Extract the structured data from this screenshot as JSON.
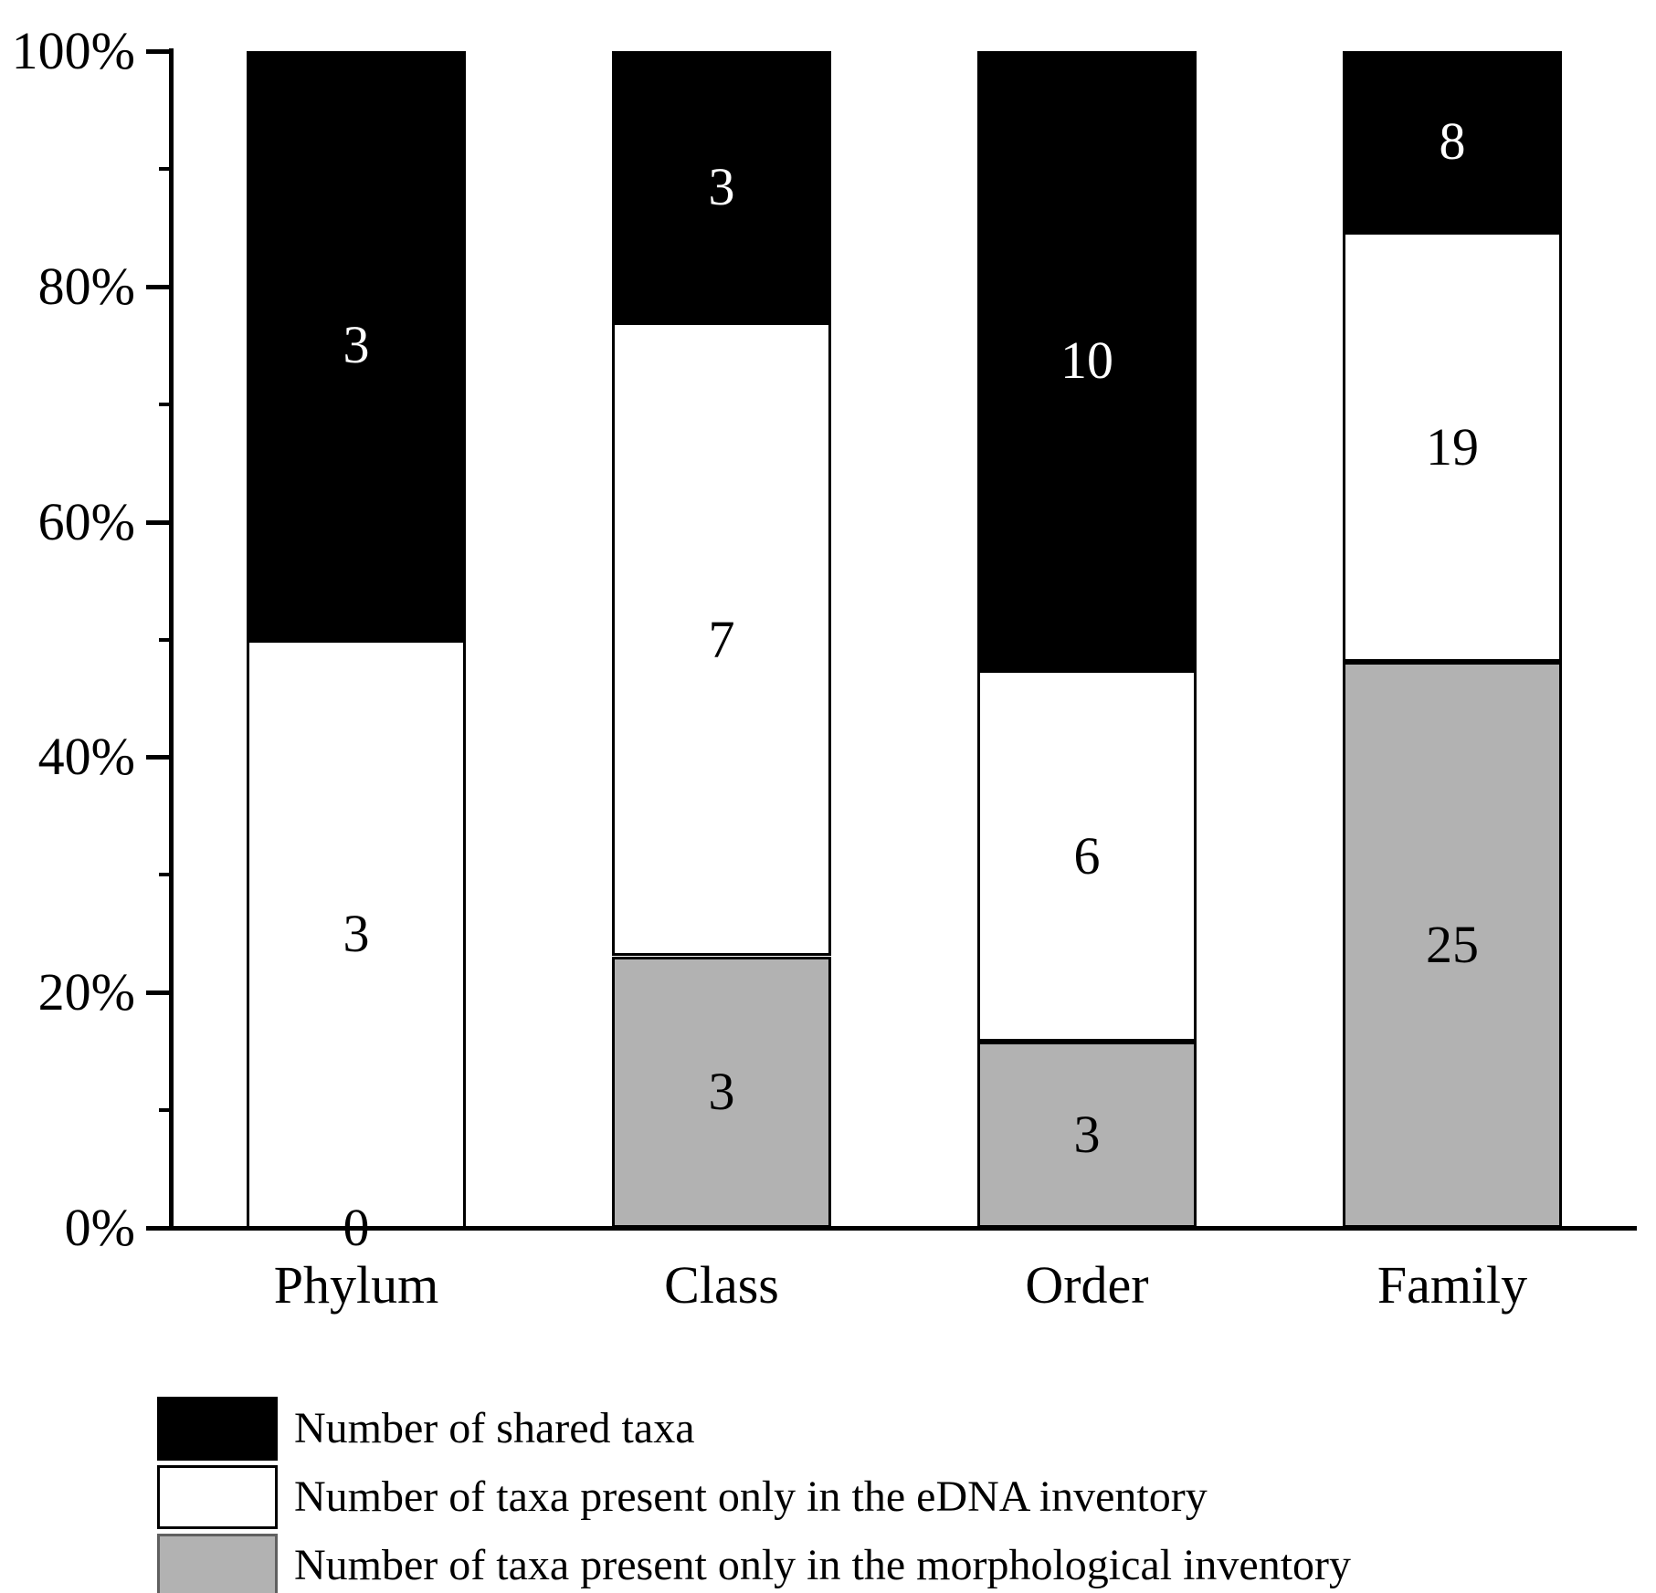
{
  "chart_data": {
    "type": "bar",
    "variant": "stacked-100-percent",
    "stack_order": "top-to-bottom",
    "categories": [
      "Phylum",
      "Class",
      "Order",
      "Family"
    ],
    "series": [
      {
        "name": "Number of shared taxa",
        "color": "#000000",
        "label_color": "#ffffff",
        "values": [
          3,
          3,
          10,
          8
        ]
      },
      {
        "name": "Number of taxa present only in the eDNA inventory",
        "color": "#ffffff",
        "label_color": "#000000",
        "values": [
          3,
          7,
          6,
          19
        ]
      },
      {
        "name": "Number of taxa present only in the morphological inventory",
        "color": "#b2b2b2",
        "label_color": "#000000",
        "values": [
          0,
          3,
          3,
          25
        ]
      }
    ],
    "y_axis": {
      "tick_labels": [
        "0%",
        "20%",
        "40%",
        "60%",
        "80%",
        "100%"
      ],
      "minor_tick_step_percent": 10,
      "range_percent": [
        0,
        100
      ]
    },
    "xlabel": "",
    "ylabel": "",
    "title": "",
    "grid": false,
    "legend_position": "bottom-left"
  },
  "legend": {
    "items": [
      {
        "label": "Number of shared taxa",
        "swatch_color": "#000000",
        "swatch_border": "#000000"
      },
      {
        "label": "Number of taxa present only in the eDNA inventory",
        "swatch_color": "#ffffff",
        "swatch_border": "#000000"
      },
      {
        "label": "Number of taxa present only in the morphological inventory",
        "swatch_color": "#b2b2b2",
        "swatch_border": "#606060"
      }
    ]
  }
}
